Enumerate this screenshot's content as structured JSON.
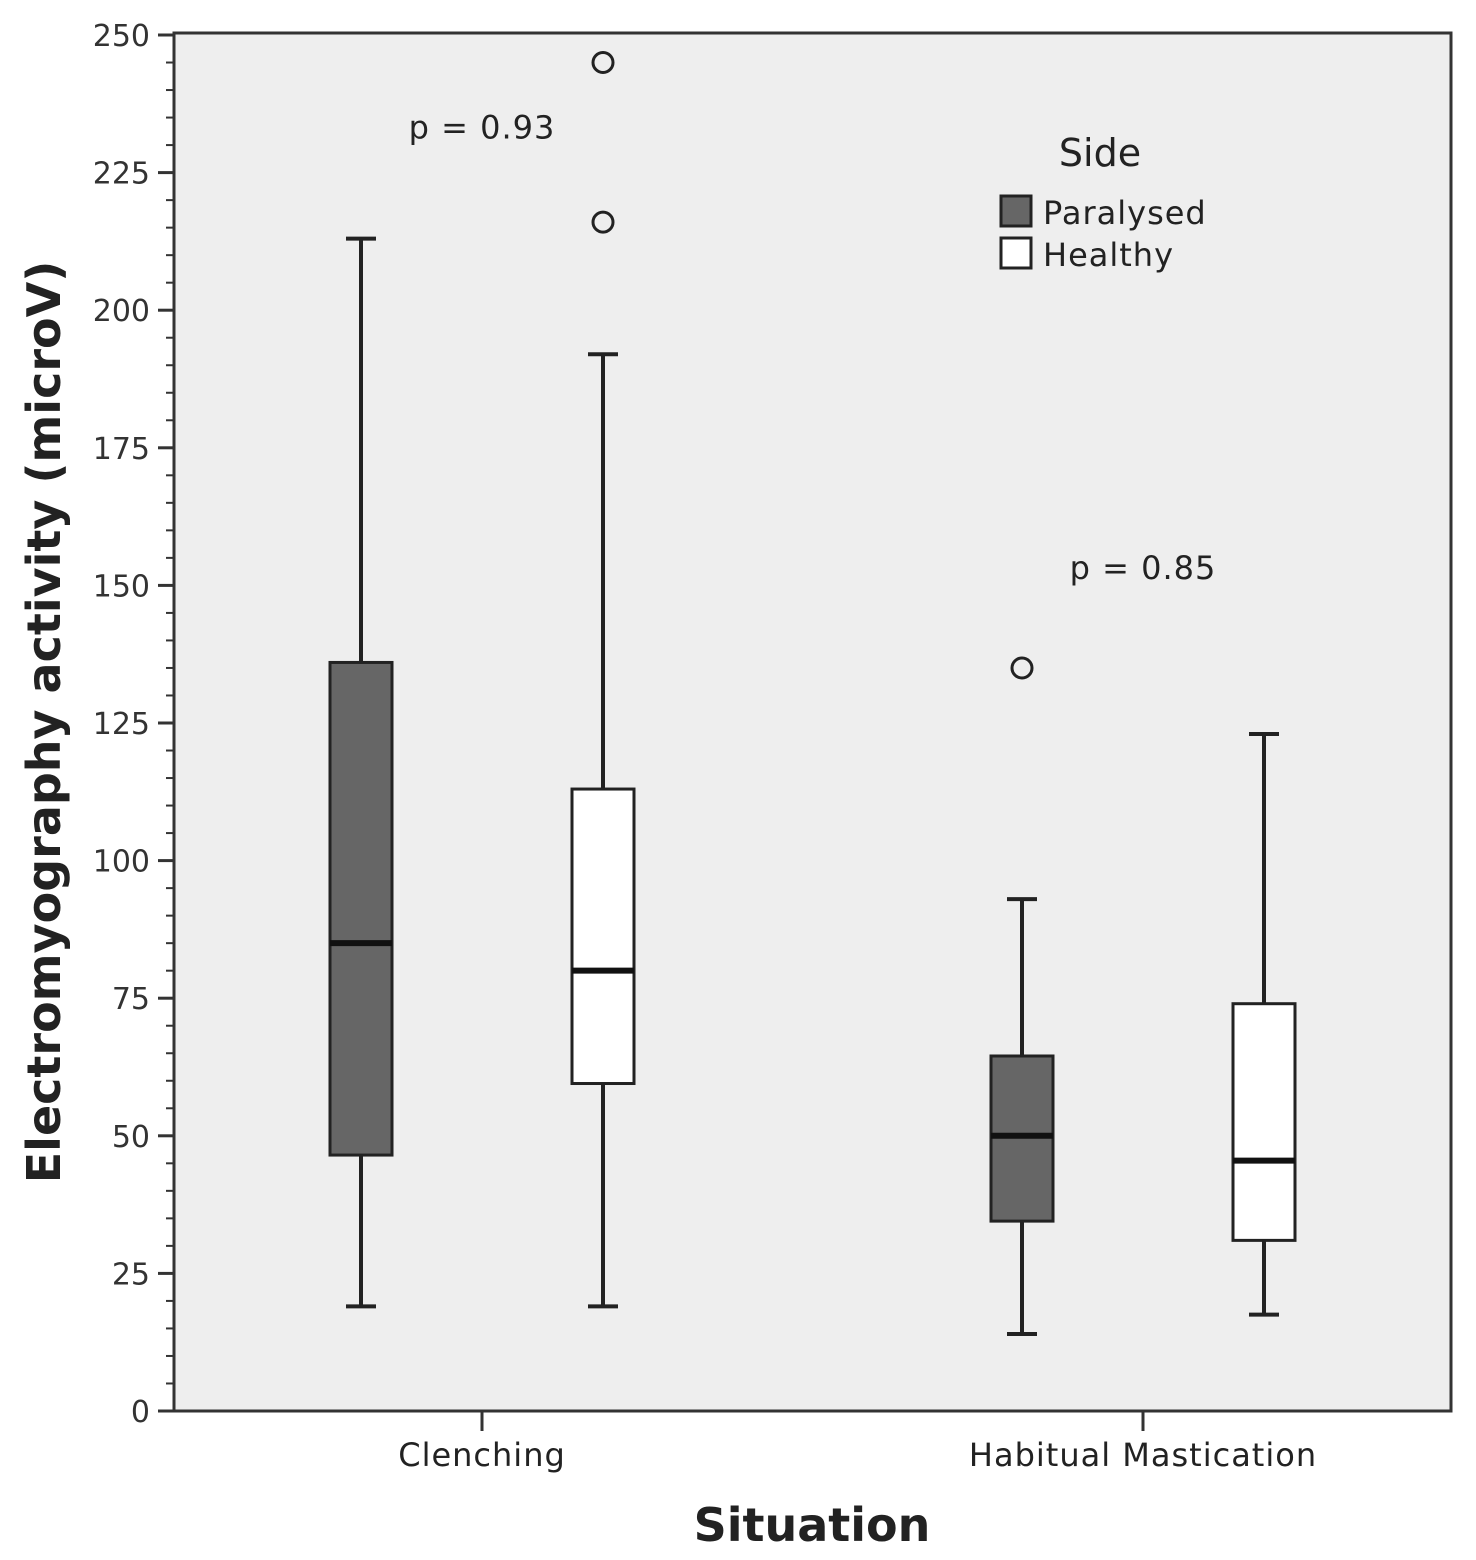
{
  "chart_data": {
    "type": "boxplot",
    "xlabel": "Situation",
    "ylabel": "Electromyography activity (microV)",
    "ylim": [
      0,
      250
    ],
    "yticks": [
      0,
      25,
      50,
      75,
      100,
      125,
      150,
      175,
      200,
      225,
      250
    ],
    "minor_tick_step": 5,
    "categories": [
      "Clenching",
      "Habitual Mastication"
    ],
    "legend": {
      "title": "Side",
      "position": "top-right",
      "entries": [
        {
          "name": "Paralysed",
          "color": "#666666"
        },
        {
          "name": "Healthy",
          "color": "#ffffff"
        }
      ]
    },
    "series": [
      {
        "name": "Paralysed",
        "color": "#666666",
        "boxes": [
          {
            "whisker_low": 19,
            "q1": 46.5,
            "median": 85,
            "q3": 136,
            "whisker_high": 213,
            "outliers": []
          },
          {
            "whisker_low": 14,
            "q1": 34.5,
            "median": 50,
            "q3": 64.5,
            "whisker_high": 93,
            "outliers": [
              135
            ]
          }
        ]
      },
      {
        "name": "Healthy",
        "color": "#ffffff",
        "boxes": [
          {
            "whisker_low": 19,
            "q1": 59.5,
            "median": 80,
            "q3": 113,
            "whisker_high": 192,
            "outliers": [
              216,
              245
            ]
          },
          {
            "whisker_low": 17.5,
            "q1": 31,
            "median": 45.5,
            "q3": 74,
            "whisker_high": 123,
            "outliers": []
          }
        ]
      }
    ],
    "annotations": [
      {
        "text": "p = 0.93",
        "category": 0,
        "y": 233
      },
      {
        "text": "p = 0.85",
        "category": 1,
        "y": 153
      }
    ]
  },
  "colors": {
    "plot_background": "#eeeeee",
    "axis": "#333333"
  }
}
